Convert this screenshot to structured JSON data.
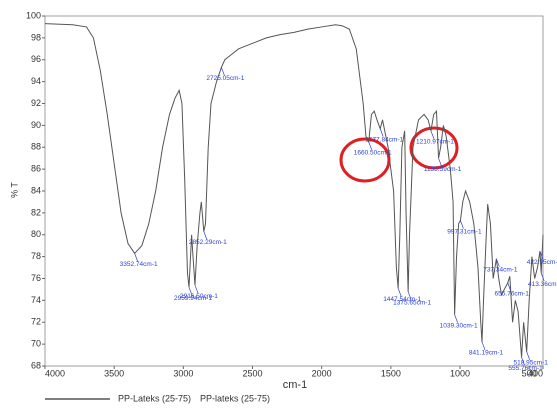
{
  "chart_data": {
    "type": "line",
    "x_label": "cm-1",
    "y_label": "% T",
    "xlim": [
      4000,
      400
    ],
    "ylim": [
      68,
      100
    ],
    "xticks": [
      4000,
      3500,
      3000,
      2500,
      2000,
      1500,
      1000,
      500,
      400
    ],
    "yticks": [
      68,
      70,
      72,
      74,
      76,
      78,
      80,
      82,
      84,
      86,
      88,
      90,
      92,
      94,
      96,
      98,
      100
    ],
    "x": [
      4000,
      3800,
      3700,
      3650,
      3600,
      3550,
      3500,
      3450,
      3400,
      3352,
      3300,
      3250,
      3200,
      3150,
      3100,
      3060,
      3030,
      3010,
      2990,
      2970,
      2959,
      2940,
      2930,
      2916,
      2900,
      2880,
      2870,
      2852,
      2840,
      2820,
      2800,
      2760,
      2725,
      2700,
      2650,
      2600,
      2500,
      2400,
      2300,
      2200,
      2100,
      2000,
      1900,
      1850,
      1800,
      1750,
      1700,
      1680,
      1660,
      1640,
      1620,
      1600,
      1577,
      1560,
      1520,
      1480,
      1460,
      1447,
      1435,
      1420,
      1400,
      1390,
      1375,
      1365,
      1340,
      1300,
      1260,
      1230,
      1210,
      1190,
      1170,
      1155,
      1140,
      1120,
      1100,
      1070,
      1050,
      1039,
      1025,
      1010,
      997,
      980,
      960,
      930,
      900,
      870,
      850,
      841,
      830,
      810,
      800,
      780,
      760,
      737,
      720,
      700,
      680,
      655,
      640,
      620,
      600,
      580,
      555,
      540,
      518,
      500,
      480,
      460,
      440,
      422,
      413,
      400
    ],
    "series": [
      {
        "name": "PP-Lateks (25-75)",
        "color": "#555555",
        "values": [
          99.3,
          99.2,
          99.0,
          98,
          95,
          91,
          86.5,
          82,
          79.2,
          78.3,
          79,
          81,
          84,
          88,
          91,
          92.5,
          93.2,
          92,
          85,
          76.5,
          75.2,
          80,
          78,
          75.4,
          79,
          82,
          83,
          80.3,
          81,
          88,
          92,
          94,
          95.3,
          96,
          96.5,
          97,
          97.5,
          98,
          98.3,
          98.5,
          98.8,
          99.0,
          99.2,
          99.1,
          98.8,
          97,
          92,
          89,
          88.5,
          91,
          91.3,
          90.5,
          89.7,
          90.5,
          88,
          84,
          77,
          75.1,
          80,
          88,
          89.5,
          82,
          74.8,
          80,
          88,
          90.5,
          91,
          90.5,
          89.5,
          91,
          91.3,
          87,
          88,
          90,
          89,
          86,
          83,
          72.7,
          78,
          81,
          81.3,
          83,
          84,
          83,
          81,
          77,
          72,
          70.2,
          74,
          80,
          82.8,
          81,
          76,
          77.8,
          76,
          74.5,
          75,
          75.6,
          76.2,
          72,
          74,
          73,
          68.8,
          72,
          69.3,
          74,
          78,
          76,
          77,
          78.5,
          76.5,
          80
        ]
      }
    ],
    "legend_note": "PP-lateks (25-75)",
    "annotations": [
      {
        "text": "3352.74cm-1",
        "x": 3352,
        "y": 78.3
      },
      {
        "text": "2916.50cm-1",
        "x": 2916,
        "y": 75.4
      },
      {
        "text": "2959.94cm-1",
        "x": 2959,
        "y": 75.2
      },
      {
        "text": "2852.29cm-1",
        "x": 2852,
        "y": 80.3
      },
      {
        "text": "2725.05cm-1",
        "x": 2725,
        "y": 95.3
      },
      {
        "text": "1660.50cm-1",
        "x": 1660,
        "y": 88.5
      },
      {
        "text": "1577.84cm-1",
        "x": 1577,
        "y": 89.7
      },
      {
        "text": "1447.54cm-1",
        "x": 1447,
        "y": 75.1
      },
      {
        "text": "1375.65cm-1",
        "x": 1375,
        "y": 74.8
      },
      {
        "text": "1210.97cm-1",
        "x": 1210,
        "y": 89.5
      },
      {
        "text": "1155.59cm-1",
        "x": 1155,
        "y": 87
      },
      {
        "text": "997.31cm-1",
        "x": 997,
        "y": 81.3
      },
      {
        "text": "1039.30cm-1",
        "x": 1039,
        "y": 72.7
      },
      {
        "text": "841.19cm-1",
        "x": 841,
        "y": 70.2
      },
      {
        "text": "737.34cm-1",
        "x": 737,
        "y": 77.8
      },
      {
        "text": "655.76cm-1",
        "x": 655,
        "y": 75.6
      },
      {
        "text": "555.76cm-1",
        "x": 555,
        "y": 68.8
      },
      {
        "text": "518.95cm-1",
        "x": 518,
        "y": 69.3
      },
      {
        "text": "422.95cm-1",
        "x": 422,
        "y": 78.5
      },
      {
        "text": "413.36cm-1",
        "x": 413,
        "y": 76.5
      }
    ]
  }
}
